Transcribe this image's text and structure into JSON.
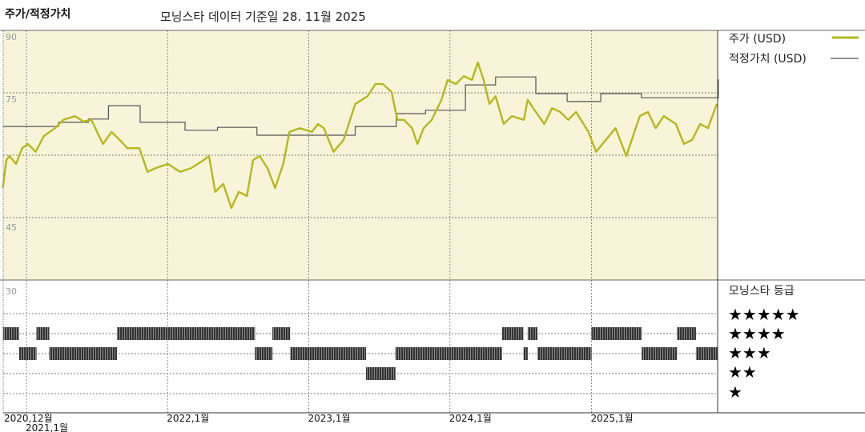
{
  "header": {
    "title": "주가/적정가치",
    "data_date": "모닝스타 데이터 기준일 28. 11월 2025"
  },
  "legend": {
    "price_label": "주가 (USD)",
    "fair_value_label": "적정가치 (USD)",
    "rating_title": "모닝스타 등급",
    "rating_rows": [
      "★★★★★",
      "★★★★",
      "★★★",
      "★★",
      "★"
    ]
  },
  "colors": {
    "price_line": "#b5b81c",
    "fair_value_line": "#555555",
    "plot_background": "#f8f4d9",
    "rating_bar": "#222222"
  },
  "chart_data": [
    {
      "type": "line",
      "ylim": [
        30,
        90
      ],
      "y_tick_labels": [
        "90",
        "75",
        "45",
        "30"
      ],
      "x_tick_labels": [
        "2020,12월",
        "2021,1월",
        "2022,1월",
        "2023,1월",
        "2024,1월",
        "2025,1월"
      ],
      "x_tick_dates": [
        "2020-12-01",
        "2021-01-01",
        "2022-01-01",
        "2023-01-01",
        "2024-01-01",
        "2025-01-01"
      ],
      "grid": true,
      "legend_position": "right",
      "series": [
        {
          "name": "주가 (USD)",
          "points": [
            [
              "2020-11-01",
              52.1
            ],
            [
              "2020-11-10",
              58.8
            ],
            [
              "2020-11-18",
              59.8
            ],
            [
              "2020-12-05",
              57.9
            ],
            [
              "2020-12-21",
              61.7
            ],
            [
              "2021-01-05",
              62.7
            ],
            [
              "2021-01-25",
              60.8
            ],
            [
              "2021-02-15",
              64.6
            ],
            [
              "2021-03-16",
              66.5
            ],
            [
              "2021-04-06",
              68.5
            ],
            [
              "2021-05-07",
              69.4
            ],
            [
              "2021-05-28",
              68.1
            ],
            [
              "2021-06-18",
              68.5
            ],
            [
              "2021-07-08",
              64.6
            ],
            [
              "2021-07-18",
              62.7
            ],
            [
              "2021-08-09",
              65.6
            ],
            [
              "2021-08-30",
              63.7
            ],
            [
              "2021-09-19",
              61.7
            ],
            [
              "2021-10-20",
              61.7
            ],
            [
              "2021-11-10",
              56.0
            ],
            [
              "2021-12-01",
              56.9
            ],
            [
              "2022-01-02",
              57.9
            ],
            [
              "2022-02-02",
              56.0
            ],
            [
              "2022-03-03",
              56.9
            ],
            [
              "2022-04-04",
              58.8
            ],
            [
              "2022-04-18",
              59.8
            ],
            [
              "2022-05-04",
              51.2
            ],
            [
              "2022-05-25",
              53.1
            ],
            [
              "2022-06-15",
              47.3
            ],
            [
              "2022-07-04",
              51.2
            ],
            [
              "2022-07-25",
              50.2
            ],
            [
              "2022-08-10",
              58.8
            ],
            [
              "2022-08-27",
              59.8
            ],
            [
              "2022-09-16",
              56.9
            ],
            [
              "2022-10-06",
              52.1
            ],
            [
              "2022-10-27",
              57.9
            ],
            [
              "2022-11-12",
              65.6
            ],
            [
              "2022-12-09",
              66.5
            ],
            [
              "2023-01-09",
              65.6
            ],
            [
              "2023-01-25",
              67.5
            ],
            [
              "2023-02-09",
              66.5
            ],
            [
              "2023-03-06",
              60.8
            ],
            [
              "2023-04-01",
              63.7
            ],
            [
              "2023-05-01",
              72.3
            ],
            [
              "2023-06-02",
              74.2
            ],
            [
              "2023-06-22",
              77.1
            ],
            [
              "2023-07-12",
              77.1
            ],
            [
              "2023-08-03",
              75.2
            ],
            [
              "2023-08-18",
              68.5
            ],
            [
              "2023-09-04",
              68.5
            ],
            [
              "2023-09-25",
              66.5
            ],
            [
              "2023-10-09",
              62.7
            ],
            [
              "2023-10-25",
              66.5
            ],
            [
              "2023-11-15",
              68.5
            ],
            [
              "2023-12-10",
              73.3
            ],
            [
              "2023-12-26",
              78.1
            ],
            [
              "2024-01-16",
              77.1
            ],
            [
              "2024-02-06",
              79.0
            ],
            [
              "2024-02-27",
              78.1
            ],
            [
              "2024-03-13",
              82.3
            ],
            [
              "2024-03-28",
              78.1
            ],
            [
              "2024-04-12",
              72.3
            ],
            [
              "2024-04-28",
              74.2
            ],
            [
              "2024-05-19",
              67.5
            ],
            [
              "2024-06-09",
              69.4
            ],
            [
              "2024-07-10",
              68.5
            ],
            [
              "2024-07-20",
              73.3
            ],
            [
              "2024-08-10",
              70.4
            ],
            [
              "2024-09-01",
              67.5
            ],
            [
              "2024-09-21",
              71.3
            ],
            [
              "2024-10-12",
              70.4
            ],
            [
              "2024-11-02",
              68.5
            ],
            [
              "2024-11-22",
              70.4
            ],
            [
              "2024-12-24",
              65.6
            ],
            [
              "2025-01-13",
              60.8
            ],
            [
              "2025-02-15",
              64.6
            ],
            [
              "2025-03-04",
              66.5
            ],
            [
              "2025-04-01",
              59.8
            ],
            [
              "2025-04-15",
              63.7
            ],
            [
              "2025-05-06",
              69.4
            ],
            [
              "2025-05-27",
              70.4
            ],
            [
              "2025-06-16",
              66.5
            ],
            [
              "2025-07-07",
              69.4
            ],
            [
              "2025-08-07",
              67.5
            ],
            [
              "2025-08-28",
              62.7
            ],
            [
              "2025-09-18",
              63.7
            ],
            [
              "2025-10-09",
              67.5
            ],
            [
              "2025-10-29",
              66.5
            ],
            [
              "2025-11-21",
              72.3
            ]
          ]
        },
        {
          "name": "적정가치 (USD)",
          "step": true,
          "points": [
            [
              "2020-11-01",
              66.9
            ],
            [
              "2021-03-25",
              67.9
            ],
            [
              "2021-06-10",
              68.7
            ],
            [
              "2021-08-01",
              71.9
            ],
            [
              "2021-10-22",
              67.9
            ],
            [
              "2022-02-15",
              66.0
            ],
            [
              "2022-05-10",
              66.7
            ],
            [
              "2022-08-20",
              64.8
            ],
            [
              "2023-05-01",
              66.9
            ],
            [
              "2023-08-15",
              70.0
            ],
            [
              "2023-10-30",
              70.8
            ],
            [
              "2024-02-10",
              76.9
            ],
            [
              "2024-04-28",
              78.8
            ],
            [
              "2024-08-10",
              74.8
            ],
            [
              "2024-10-30",
              72.9
            ],
            [
              "2025-01-25",
              74.8
            ],
            [
              "2025-05-10",
              73.8
            ],
            [
              "2025-11-25",
              78.1
            ]
          ]
        }
      ]
    },
    {
      "type": "timeline",
      "title": "모닝스타 등급",
      "periods": [
        [
          "2020-11-01",
          "2020-12-13",
          4
        ],
        [
          "2020-12-13",
          "2021-01-27",
          3
        ],
        [
          "2021-01-27",
          "2021-03-01",
          4
        ],
        [
          "2021-03-01",
          "2021-08-23",
          3
        ],
        [
          "2021-08-23",
          "2022-08-15",
          4
        ],
        [
          "2022-08-15",
          "2022-09-29",
          3
        ],
        [
          "2022-09-29",
          "2022-11-14",
          4
        ],
        [
          "2022-11-14",
          "2023-05-29",
          3
        ],
        [
          "2023-05-29",
          "2023-08-13",
          2
        ],
        [
          "2023-08-13",
          "2024-05-15",
          3
        ],
        [
          "2024-05-15",
          "2024-07-09",
          4
        ],
        [
          "2024-07-09",
          "2024-07-20",
          3
        ],
        [
          "2024-07-20",
          "2024-08-14",
          4
        ],
        [
          "2024-08-14",
          "2025-01-01",
          3
        ],
        [
          "2025-01-01",
          "2025-05-11",
          4
        ],
        [
          "2025-05-11",
          "2025-08-10",
          3
        ],
        [
          "2025-08-10",
          "2025-09-28",
          4
        ],
        [
          "2025-09-28",
          "2025-11-28",
          3
        ]
      ]
    }
  ]
}
